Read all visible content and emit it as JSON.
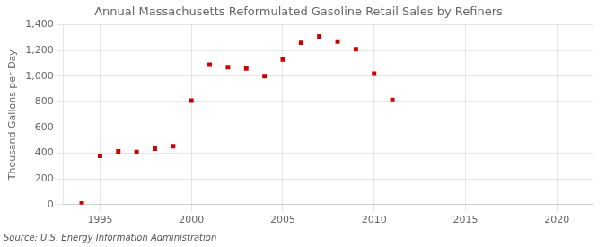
{
  "chart_data": {
    "type": "scatter",
    "title": "Annual Massachusetts Reformulated Gasoline Retail Sales by Refiners",
    "ylabel": "Thousand Gallons per Day",
    "source": "Source: U.S. Energy Information Administration",
    "x": [
      1994,
      1995,
      1996,
      1997,
      1998,
      1999,
      2000,
      2001,
      2002,
      2003,
      2004,
      2005,
      2006,
      2007,
      2008,
      2009,
      2010,
      2011
    ],
    "values": [
      10,
      380,
      415,
      410,
      435,
      455,
      810,
      1090,
      1070,
      1060,
      1000,
      1130,
      1260,
      1310,
      1270,
      1210,
      1020,
      815
    ],
    "color": "#cc0000",
    "marker": "square",
    "grid": true,
    "xlim": [
      1993,
      2022
    ],
    "xticks": [
      1995,
      2000,
      2005,
      2010,
      2015,
      2020
    ],
    "ylim": [
      0,
      1400
    ],
    "yticks": [
      0,
      200,
      400,
      600,
      800,
      {
        "value": 1000,
        "label": "1,000"
      },
      {
        "value": 1200,
        "label": "1,200"
      },
      {
        "value": 1400,
        "label": "1,400"
      }
    ]
  }
}
